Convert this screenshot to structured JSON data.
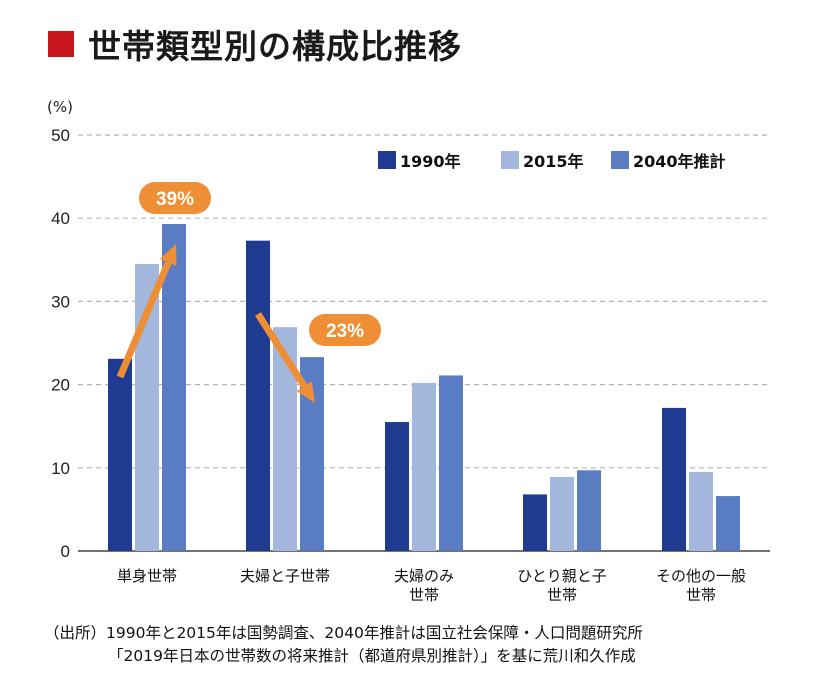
{
  "title": "世帯類型別の構成比推移",
  "colors": {
    "title_square": "#c8161d",
    "s1990": "#1e3b91",
    "s2015": "#a3b6dc",
    "s2040": "#5a7cc3",
    "arrow": "#ee8f36",
    "grid": "#b5b5b5"
  },
  "chart_data": {
    "type": "bar",
    "title": "世帯類型別の構成比推移",
    "ylabel": "(%)",
    "xlabel": "",
    "ylim": [
      0,
      50
    ],
    "yticks": [
      0,
      10,
      20,
      30,
      40,
      50
    ],
    "grid": true,
    "legend_position": "top-right",
    "categories": [
      [
        "単身世帯"
      ],
      [
        "夫婦と子世帯"
      ],
      [
        "夫婦のみ",
        "世帯"
      ],
      [
        "ひとり親と子",
        "世帯"
      ],
      [
        "その他の一般",
        "世帯"
      ]
    ],
    "series": [
      {
        "name": "1990年",
        "values": [
          23.1,
          37.3,
          15.5,
          6.8,
          17.2
        ]
      },
      {
        "name": "2015年",
        "values": [
          34.5,
          26.9,
          20.2,
          8.9,
          9.5
        ]
      },
      {
        "name": "2040年推計",
        "values": [
          39.3,
          23.3,
          21.1,
          9.7,
          6.6
        ]
      }
    ],
    "annotations": [
      {
        "text": "39%",
        "category_index": 0,
        "trend": "up"
      },
      {
        "text": "23%",
        "category_index": 1,
        "trend": "down"
      }
    ]
  },
  "source": {
    "line1": "（出所）1990年と2015年は国勢調査、2040年推計は国立社会保障・人口問題研究所",
    "line2": "「2019年日本の世帯数の将来推計（都道府県別推計）」を基に荒川和久作成"
  }
}
